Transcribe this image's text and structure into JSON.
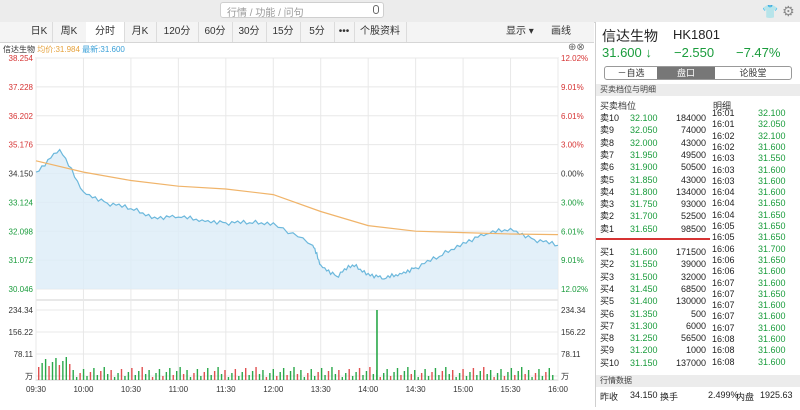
{
  "search": {
    "placeholder": "行情 / 功能 / 问句"
  },
  "toolbar": {
    "items": [
      "日K",
      "周K",
      "分时",
      "月K",
      "120分",
      "60分",
      "30分",
      "15分",
      "5分",
      "•••",
      "个股资料"
    ],
    "active_index": 2,
    "display_label": "显示",
    "draw_label": "画线"
  },
  "chart": {
    "legend_name": "信达生物",
    "legend_avg": "均价:31.984",
    "legend_last": "最新:31.600",
    "price_ticks": [
      "38.254",
      "37.228",
      "36.202",
      "35.176",
      "34.150",
      "33.124",
      "32.098",
      "31.072",
      "30.046"
    ],
    "pct_ticks": [
      "12.02%",
      "9.01%",
      "6.01%",
      "3.00%",
      "0.00%",
      "3.00%",
      "6.01%",
      "9.01%",
      "12.02%"
    ],
    "vol_ticks": [
      "234.34",
      "156.22",
      "78.11",
      "万"
    ],
    "time_ticks": [
      "09:30",
      "10:00",
      "10:30",
      "11:00",
      "11:30",
      "12:00",
      "13:30",
      "14:00",
      "14:30",
      "15:00",
      "15:30",
      "16:00"
    ],
    "colors": {
      "price": "#6cb8dc",
      "avg": "#f0b46a",
      "fill": "#dcecf7",
      "grid": "#e8e8e8",
      "up": "#e05050",
      "down": "#2aa84a"
    }
  },
  "chart_data": {
    "type": "line",
    "title": "",
    "ylim": [
      30.046,
      38.254
    ],
    "series": [
      {
        "name": "最新",
        "x": [
          "09:30",
          "09:45",
          "10:00",
          "10:15",
          "10:30",
          "10:45",
          "11:00",
          "11:15",
          "11:30",
          "11:45",
          "12:00",
          "13:15",
          "13:30",
          "13:40",
          "13:50",
          "14:00",
          "14:10",
          "14:20",
          "14:30",
          "14:45",
          "15:00",
          "15:15",
          "15:30",
          "15:45",
          "16:00"
        ],
        "values": [
          34.2,
          35.0,
          33.5,
          33.1,
          32.9,
          32.6,
          32.6,
          32.5,
          32.4,
          32.4,
          32.4,
          31.6,
          30.9,
          30.5,
          30.9,
          30.6,
          30.4,
          30.6,
          30.8,
          31.2,
          31.7,
          32.0,
          32.2,
          31.8,
          31.6
        ]
      },
      {
        "name": "均价",
        "x": [
          "09:30",
          "10:00",
          "10:30",
          "11:00",
          "11:30",
          "12:00",
          "13:30",
          "14:00",
          "14:30",
          "15:00",
          "15:30",
          "16:00"
        ],
        "values": [
          34.6,
          34.2,
          33.9,
          33.7,
          33.6,
          33.4,
          32.8,
          32.3,
          32.1,
          32.05,
          32.0,
          31.98
        ]
      }
    ]
  },
  "quote": {
    "name": "信达生物",
    "code": "HK1801",
    "price": "31.600 ↓",
    "change": "−2.550",
    "pct": "−7.47%",
    "tabs": [
      "－自选",
      "盘口",
      "论股堂"
    ],
    "section_title": "买卖档位与明细",
    "ob_title": "买卖档位",
    "ticks_title": "明细",
    "asks": [
      {
        "label": "卖10",
        "price": "32.100",
        "vol": "184000"
      },
      {
        "label": "卖9",
        "price": "32.050",
        "vol": "74000"
      },
      {
        "label": "卖8",
        "price": "32.000",
        "vol": "43000"
      },
      {
        "label": "卖7",
        "price": "31.950",
        "vol": "49500"
      },
      {
        "label": "卖6",
        "price": "31.900",
        "vol": "50500"
      },
      {
        "label": "卖5",
        "price": "31.850",
        "vol": "43000"
      },
      {
        "label": "卖4",
        "price": "31.800",
        "vol": "134000"
      },
      {
        "label": "卖3",
        "price": "31.750",
        "vol": "93000"
      },
      {
        "label": "卖2",
        "price": "31.700",
        "vol": "52500"
      },
      {
        "label": "卖1",
        "price": "31.650",
        "vol": "98500"
      }
    ],
    "bids": [
      {
        "label": "买1",
        "price": "31.600",
        "vol": "171500"
      },
      {
        "label": "买2",
        "price": "31.550",
        "vol": "39000"
      },
      {
        "label": "买3",
        "price": "31.500",
        "vol": "32000"
      },
      {
        "label": "买4",
        "price": "31.450",
        "vol": "68500"
      },
      {
        "label": "买5",
        "price": "31.400",
        "vol": "130000"
      },
      {
        "label": "买6",
        "price": "31.350",
        "vol": "500"
      },
      {
        "label": "买7",
        "price": "31.300",
        "vol": "6000"
      },
      {
        "label": "买8",
        "price": "31.250",
        "vol": "56500"
      },
      {
        "label": "买9",
        "price": "31.200",
        "vol": "1000"
      },
      {
        "label": "买10",
        "price": "31.150",
        "vol": "137000"
      }
    ],
    "ticks": [
      {
        "t": "16:01",
        "p": "32.100",
        "c": "g"
      },
      {
        "t": "16:01",
        "p": "32.050",
        "c": "g"
      },
      {
        "t": "16:02",
        "p": "32.100",
        "c": "g"
      },
      {
        "t": "16:02",
        "p": "31.600",
        "c": "g"
      },
      {
        "t": "16:03",
        "p": "31.550",
        "c": "g"
      },
      {
        "t": "16:03",
        "p": "31.600",
        "c": "g"
      },
      {
        "t": "16:03",
        "p": "31.600",
        "c": "g"
      },
      {
        "t": "16:04",
        "p": "31.600",
        "c": "g"
      },
      {
        "t": "16:04",
        "p": "31.650",
        "c": "g"
      },
      {
        "t": "16:04",
        "p": "31.650",
        "c": "g"
      },
      {
        "t": "16:05",
        "p": "31.650",
        "c": "g"
      },
      {
        "t": "16:05",
        "p": "31.650",
        "c": "g"
      },
      {
        "t": "16:06",
        "p": "31.700",
        "c": "g"
      },
      {
        "t": "16:06",
        "p": "31.650",
        "c": "g"
      },
      {
        "t": "16:06",
        "p": "31.600",
        "c": "g"
      },
      {
        "t": "16:07",
        "p": "31.600",
        "c": "g"
      },
      {
        "t": "16:07",
        "p": "31.650",
        "c": "g"
      },
      {
        "t": "16:07",
        "p": "31.600",
        "c": "g"
      },
      {
        "t": "16:07",
        "p": "31.600",
        "c": "g"
      },
      {
        "t": "16:07",
        "p": "31.600",
        "c": "g"
      },
      {
        "t": "16:08",
        "p": "31.600",
        "c": "g"
      },
      {
        "t": "16:08",
        "p": "31.600",
        "c": "g"
      },
      {
        "t": "16:08",
        "p": "31.600",
        "c": "g"
      }
    ],
    "stats_title": "行情数据",
    "stats_row": {
      "k1": "昨收",
      "v1": "34.150",
      "k2": "换手",
      "v2": "2.499%",
      "k3": "内盘",
      "v3": "1925.63"
    }
  }
}
